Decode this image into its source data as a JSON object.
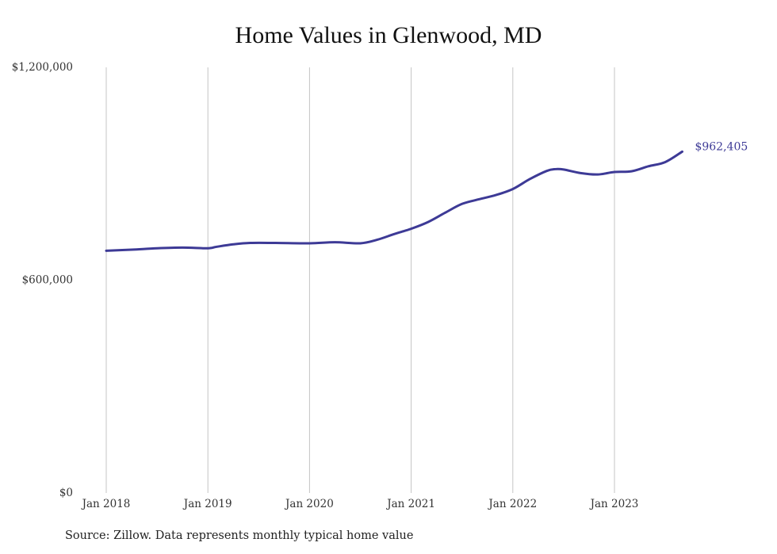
{
  "chart_data": {
    "type": "line",
    "title": "Home Values in Glenwood, MD",
    "xlabel": "",
    "ylabel": "",
    "x_ticks": [
      "Jan 2018",
      "Jan 2019",
      "Jan 2020",
      "Jan 2021",
      "Jan 2022",
      "Jan 2023"
    ],
    "y_ticks": [
      "$0",
      "$600,000",
      "$1,200,000"
    ],
    "y_tick_values": [
      0,
      600000,
      1200000
    ],
    "ylim": [
      0,
      1200000
    ],
    "xlim": [
      "2018-01",
      "2023-09"
    ],
    "grid": "vertical",
    "legend": "none",
    "series": [
      {
        "color": "#3d3a96",
        "end_label": "$962,405",
        "points": [
          [
            "2018-01",
            683000
          ],
          [
            "2018-04",
            686000
          ],
          [
            "2018-07",
            690000
          ],
          [
            "2018-10",
            692000
          ],
          [
            "2019-01",
            690000
          ],
          [
            "2019-02",
            694000
          ],
          [
            "2019-04",
            701000
          ],
          [
            "2019-06",
            705000
          ],
          [
            "2019-09",
            705000
          ],
          [
            "2020-01",
            704000
          ],
          [
            "2020-04",
            707000
          ],
          [
            "2020-07",
            704000
          ],
          [
            "2020-09",
            714000
          ],
          [
            "2020-11",
            730000
          ],
          [
            "2021-01",
            745000
          ],
          [
            "2021-03",
            764000
          ],
          [
            "2021-05",
            790000
          ],
          [
            "2021-07",
            815000
          ],
          [
            "2021-09",
            828000
          ],
          [
            "2021-11",
            840000
          ],
          [
            "2022-01",
            857000
          ],
          [
            "2022-03",
            885000
          ],
          [
            "2022-05",
            908000
          ],
          [
            "2022-06",
            913000
          ],
          [
            "2022-07",
            912000
          ],
          [
            "2022-09",
            902000
          ],
          [
            "2022-11",
            898000
          ],
          [
            "2023-01",
            905000
          ],
          [
            "2023-03",
            907000
          ],
          [
            "2023-05",
            921000
          ],
          [
            "2023-07",
            933000
          ],
          [
            "2023-09",
            962405
          ]
        ]
      }
    ]
  },
  "source": "Source: Zillow. Data represents monthly typical home value"
}
